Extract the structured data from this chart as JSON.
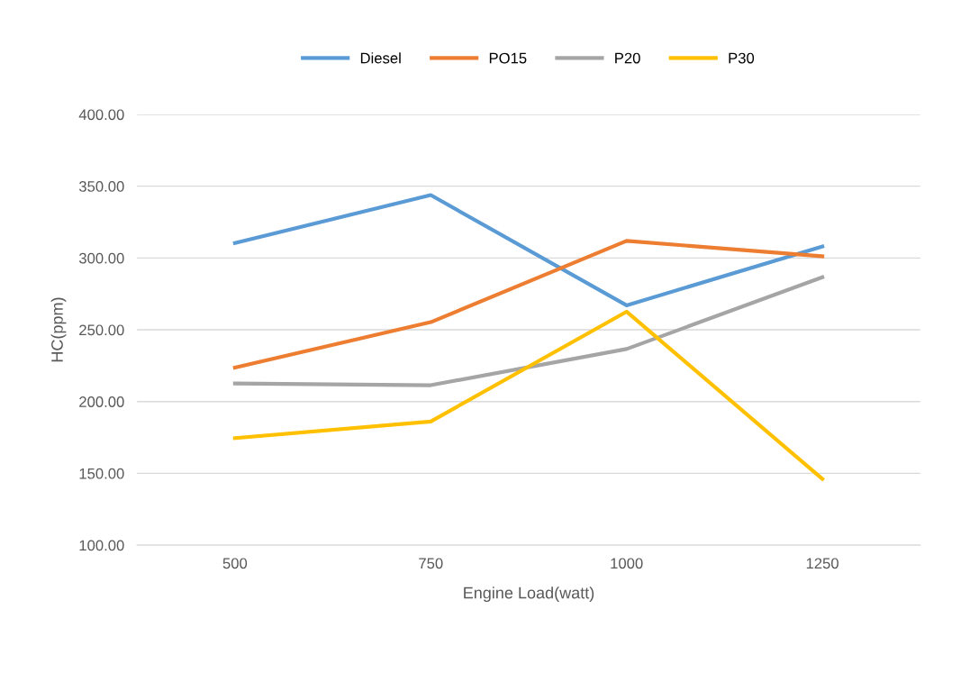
{
  "chart_data": {
    "type": "line",
    "xlabel": "Engine Load(watt)",
    "ylabel": "HC(ppm)",
    "categories": [
      "500",
      "750",
      "1000",
      "1250"
    ],
    "series": [
      {
        "name": "Diesel",
        "color": "#5b9bd5",
        "values": [
          310.4,
          343.8,
          267,
          308
        ]
      },
      {
        "name": "PO15",
        "color": "#ed7d31",
        "values": [
          223.6,
          255.3,
          311.9,
          301.2
        ]
      },
      {
        "name": "P20",
        "color": "#a5a5a5",
        "values": [
          212.6,
          211.4,
          236.6,
          286.6
        ]
      },
      {
        "name": "P30",
        "color": "#ffc000",
        "values": [
          174.5,
          186.1,
          262.6,
          146.1
        ]
      }
    ],
    "ylim": [
      100,
      400
    ],
    "yticks": [
      {
        "value": 100,
        "label": "100.00"
      },
      {
        "value": 150,
        "label": "150.00"
      },
      {
        "value": 200,
        "label": "200.00"
      },
      {
        "value": 250,
        "label": "250.00"
      },
      {
        "value": 300,
        "label": "300.00"
      },
      {
        "value": 350,
        "label": "350.00"
      },
      {
        "value": 400,
        "label": "400.00"
      }
    ],
    "grid": "y",
    "legend": "top",
    "marker": "none",
    "line_style": "solid"
  }
}
